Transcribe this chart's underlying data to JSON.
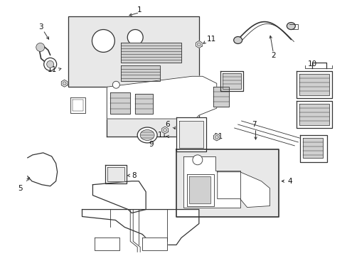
{
  "bg_color": "#ffffff",
  "fig_width": 4.89,
  "fig_height": 3.6,
  "dpi": 100,
  "line_color": "#333333",
  "fill_light": "#e8e8e8",
  "fill_mid": "#d0d0d0",
  "label_fs": 7.5
}
